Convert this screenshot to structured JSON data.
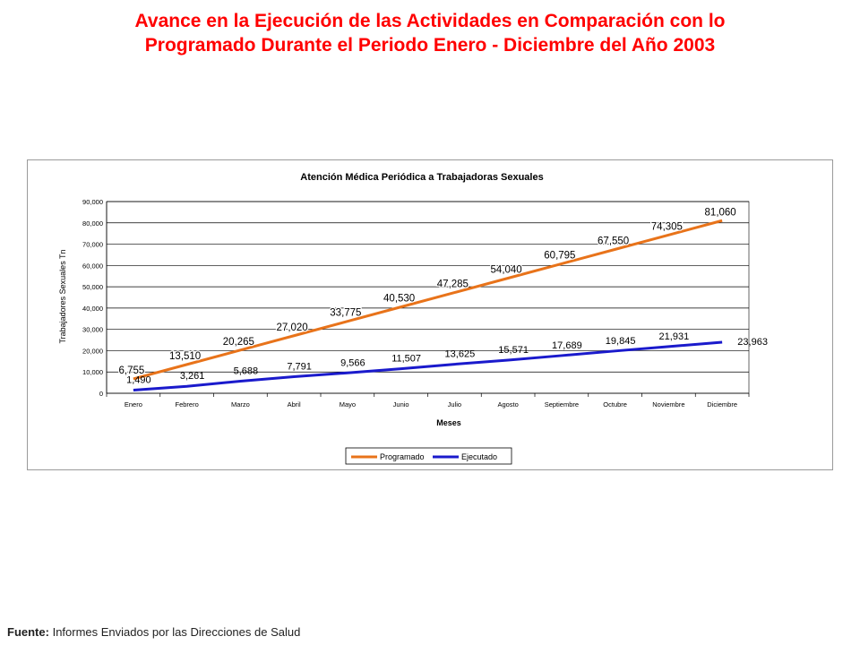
{
  "title": {
    "line1": "Avance en la Ejecución de las Actividades en Comparación con lo",
    "line2": "Programado Durante el Periodo Enero - Diciembre del Año 2003"
  },
  "footer": {
    "label": "Fuente:",
    "text": "Informes Enviados por las Direcciones de Salud"
  },
  "chart_data": {
    "type": "line",
    "title": "Atención Médica Periódica a Trabajadoras Sexuales",
    "xlabel": "Meses",
    "ylabel": "Trabajadores Sexuales Tn",
    "categories": [
      "Enero",
      "Febrero",
      "Marzo",
      "Abril",
      "Mayo",
      "Junio",
      "Julio",
      "Agosto",
      "Septiembre",
      "Octubre",
      "Noviembre",
      "Diciembre"
    ],
    "ylim": [
      0,
      90000
    ],
    "yticks": [
      0,
      10000,
      20000,
      30000,
      40000,
      50000,
      60000,
      70000,
      80000,
      90000
    ],
    "ytick_labels": [
      "0",
      "10,000",
      "20,000",
      "30,000",
      "40,000",
      "50,000",
      "60,000",
      "70,000",
      "80,000",
      "90,000"
    ],
    "grid": true,
    "legend_position": "bottom",
    "series": [
      {
        "name": "Programado",
        "color": "#e8731a",
        "values": [
          6755,
          13510,
          20265,
          27020,
          33775,
          40530,
          47285,
          54040,
          60795,
          67550,
          74305,
          81060
        ],
        "labels": [
          "6,755",
          "13,510",
          "20,265",
          "27,020",
          "33,775",
          "40,530",
          "47,285",
          "54,040",
          "60,795",
          "67,550",
          "74,305",
          "81,060"
        ]
      },
      {
        "name": "Ejecutado",
        "color": "#1a1acc",
        "values": [
          1490,
          3261,
          5688,
          7791,
          9566,
          11507,
          13625,
          15571,
          17689,
          19845,
          21931,
          23963
        ],
        "labels": [
          "1,490",
          "3,261",
          "5,688",
          "7,791",
          "9,566",
          "11,507",
          "13,625",
          "15,571",
          "17,689",
          "19,845",
          "21,931",
          "23,963"
        ]
      }
    ]
  }
}
